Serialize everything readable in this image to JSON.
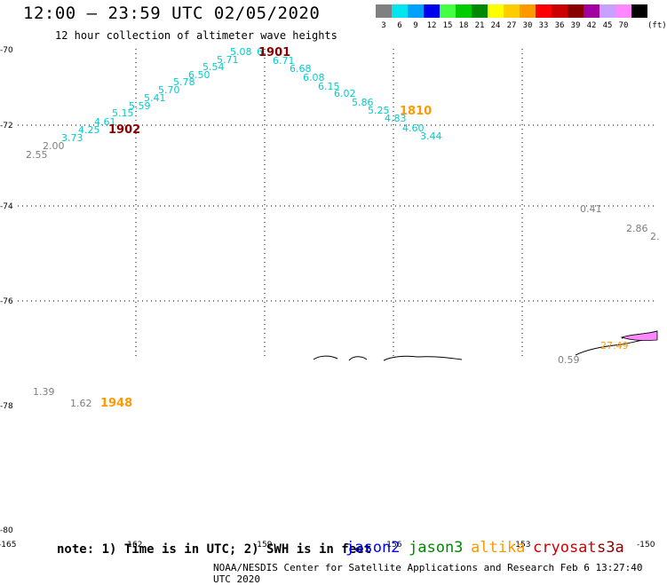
{
  "header": {
    "title": "12:00 — 23:59 UTC 02/05/2020",
    "subtitle": "12 hour collection of altimeter wave heights"
  },
  "color_scale": {
    "unit": "(ft)",
    "bins": [
      {
        "label": "3",
        "color": "#808080"
      },
      {
        "label": "6",
        "color": "#00e5ee"
      },
      {
        "label": "9",
        "color": "#00a0ff"
      },
      {
        "label": "12",
        "color": "#0000ee"
      },
      {
        "label": "15",
        "color": "#44ff44"
      },
      {
        "label": "18",
        "color": "#00cc00"
      },
      {
        "label": "21",
        "color": "#008800"
      },
      {
        "label": "24",
        "color": "#ffff00"
      },
      {
        "label": "27",
        "color": "#ffcc00"
      },
      {
        "label": "30",
        "color": "#ff9900"
      },
      {
        "label": "33",
        "color": "#ff0000"
      },
      {
        "label": "36",
        "color": "#cc0000"
      },
      {
        "label": "39",
        "color": "#880000"
      },
      {
        "label": "42",
        "color": "#a000a0"
      },
      {
        "label": "45",
        "color": "#c8a0ff"
      },
      {
        "label": "70",
        "color": "#ff88ff"
      },
      {
        "label": "",
        "color": "#000000"
      }
    ]
  },
  "axes": {
    "lat_labels": [
      "-70",
      "-72",
      "-74",
      "-76",
      "-78",
      "-80"
    ],
    "lon_labels": [
      "-165",
      "-162",
      "-159",
      "-156",
      "-153",
      "-150"
    ]
  },
  "wave_heights": [
    {
      "text": "2.55",
      "color": "#808080"
    },
    {
      "text": "2.00",
      "color": "#808080"
    },
    {
      "text": "3.73",
      "color": "#00cccc"
    },
    {
      "text": "4.25",
      "color": "#00cccc"
    },
    {
      "text": "4.61",
      "color": "#00cccc"
    },
    {
      "text": "5.15",
      "color": "#00cccc"
    },
    {
      "text": "5.59",
      "color": "#00cccc"
    },
    {
      "text": "5.41",
      "color": "#00cccc"
    },
    {
      "text": "5.70",
      "color": "#00cccc"
    },
    {
      "text": "5.78",
      "color": "#00cccc"
    },
    {
      "text": "6.50",
      "color": "#00cccc"
    },
    {
      "text": "5.54",
      "color": "#00cccc"
    },
    {
      "text": "5.71",
      "color": "#00cccc"
    },
    {
      "text": "5.08",
      "color": "#00cccc"
    },
    {
      "text": "6",
      "color": "#00cccc"
    },
    {
      "text": "6.71",
      "color": "#00cccc"
    },
    {
      "text": "6.68",
      "color": "#00cccc"
    },
    {
      "text": "6.08",
      "color": "#00cccc"
    },
    {
      "text": "6.15",
      "color": "#00cccc"
    },
    {
      "text": "6.02",
      "color": "#00cccc"
    },
    {
      "text": "5.86",
      "color": "#00cccc"
    },
    {
      "text": "5.25",
      "color": "#00cccc"
    },
    {
      "text": "4.83",
      "color": "#00cccc"
    },
    {
      "text": "4.60",
      "color": "#00cccc"
    },
    {
      "text": "3.44",
      "color": "#00cccc"
    },
    {
      "text": "0.41",
      "color": "#808080"
    },
    {
      "text": "2.86",
      "color": "#808080"
    },
    {
      "text": "2.",
      "color": "#808080"
    },
    {
      "text": "0.59",
      "color": "#808080"
    },
    {
      "text": "27.49",
      "color": "#ff9900"
    },
    {
      "text": "1.39",
      "color": "#808080"
    },
    {
      "text": "1.62",
      "color": "#808080"
    }
  ],
  "pass_times": [
    {
      "text": "1902",
      "color": "#8b0000"
    },
    {
      "text": "1901",
      "color": "#8b0000"
    },
    {
      "text": "1810",
      "color": "#ff9900"
    },
    {
      "text": "1948",
      "color": "#ff9900"
    }
  ],
  "footer": {
    "note": "note: 1) Time is in UTC; 2) SWH is in feet",
    "credit": "NOAA/NESDIS Center for Satellite Applications and Research   Feb  6 13:27:40 UTC 2020",
    "missions": [
      {
        "name": "jason2",
        "color": "#0000ff"
      },
      {
        "name": "jason3",
        "color": "#008800"
      },
      {
        "name": "altika",
        "color": "#ff9900"
      },
      {
        "name": "cryosat",
        "color": "#cc0000"
      },
      {
        "name": "s3a",
        "color": "#880000"
      }
    ]
  }
}
